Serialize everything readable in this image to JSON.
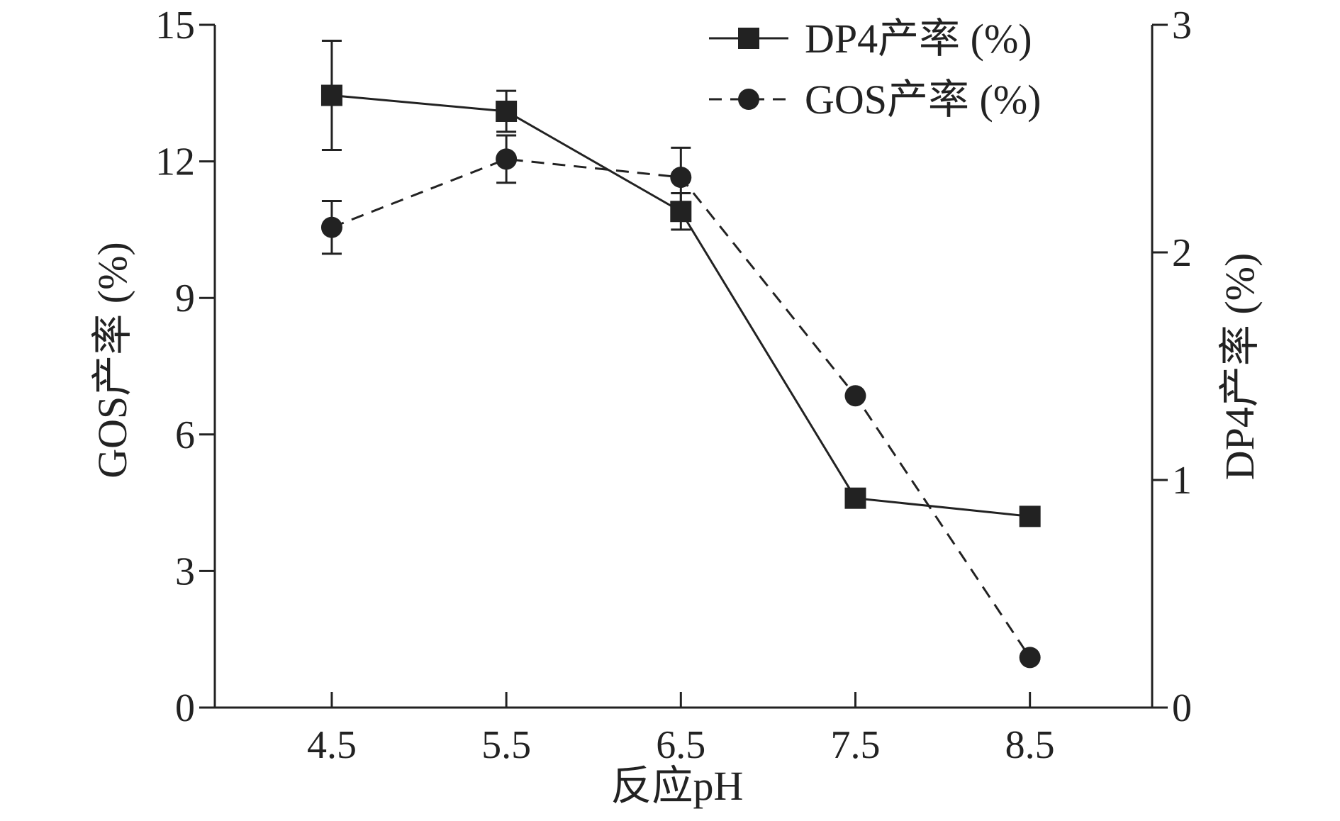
{
  "chart_data": {
    "type": "line",
    "xlabel": "反应pH",
    "ylabel_left": "GOS产率 (%)",
    "ylabel_right": "DP4产率 (%)",
    "x_categories": [
      "4.5",
      "5.5",
      "6.5",
      "7.5",
      "8.5"
    ],
    "x_values": [
      4.5,
      5.5,
      6.5,
      7.5,
      8.5
    ],
    "xlim": [
      3.83,
      9.2
    ],
    "ylim_left": [
      0,
      15
    ],
    "ylim_right": [
      0,
      3
    ],
    "yticks_left": [
      "0",
      "3",
      "6",
      "9",
      "12",
      "15"
    ],
    "yticks_right": [
      "0",
      "1",
      "2",
      "3"
    ],
    "legend_position": "top-right",
    "grid": false,
    "series": [
      {
        "name": "DP4产率 (%)",
        "axis": "right",
        "marker": "square",
        "line_style": "solid",
        "color": "#222222",
        "values": [
          2.69,
          2.62,
          2.18,
          0.92,
          0.84
        ],
        "errors": [
          0.24,
          0.09,
          0.08,
          null,
          null
        ]
      },
      {
        "name": "GOS产率 (%)",
        "axis": "left",
        "marker": "circle",
        "line_style": "dashed",
        "color": "#222222",
        "values": [
          10.55,
          12.05,
          11.65,
          6.85,
          1.1
        ],
        "errors": [
          0.58,
          0.52,
          0.65,
          null,
          null
        ]
      }
    ]
  }
}
